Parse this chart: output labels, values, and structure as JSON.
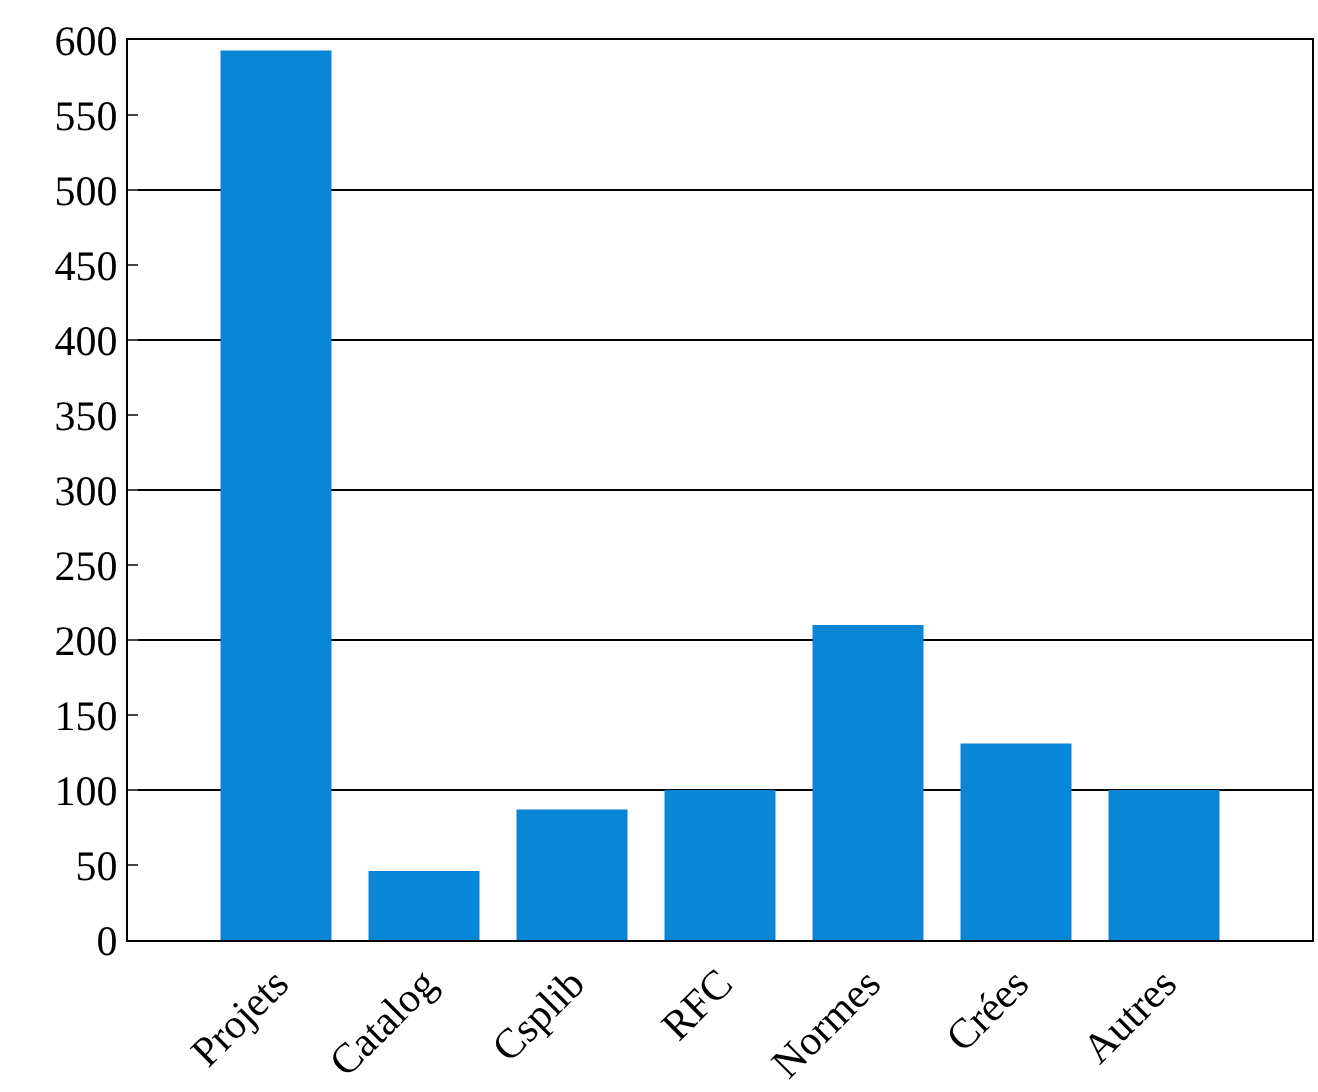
{
  "chart_data": {
    "type": "bar",
    "categories": [
      "Projets",
      "Catalog",
      "Csplib",
      "RFC",
      "Normes",
      "Crées",
      "Autres"
    ],
    "values": [
      593,
      46,
      87,
      100,
      210,
      131,
      100
    ],
    "color": "#0a86d6",
    "ylim": [
      0,
      600
    ],
    "yticks": [
      0,
      50,
      100,
      150,
      200,
      250,
      300,
      350,
      400,
      450,
      500,
      550,
      600
    ],
    "grid": "y"
  }
}
